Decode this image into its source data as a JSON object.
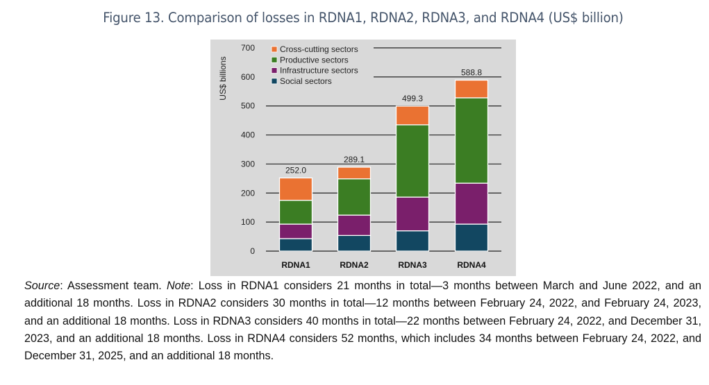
{
  "title": "Figure 13. Comparison of losses in RDNA1, RDNA2, RDNA3, and RDNA4 (US$ billion)",
  "chart_data": {
    "type": "bar",
    "stacked": true,
    "categories": [
      "RDNA1",
      "RDNA2",
      "RDNA3",
      "RDNA4"
    ],
    "series": [
      {
        "name": "Social sectors",
        "color": "#124761",
        "values": [
          43,
          54,
          70,
          93
        ]
      },
      {
        "name": "Infrastructure sectors",
        "color": "#7a1f6b",
        "values": [
          50,
          70,
          116,
          141
        ]
      },
      {
        "name": "Productive sectors",
        "color": "#3b7d23",
        "values": [
          82,
          125,
          249,
          294
        ]
      },
      {
        "name": "Cross-cutting sectors",
        "color": "#ea7232",
        "values": [
          77,
          40.1,
          64.3,
          60.8
        ]
      }
    ],
    "totals": [
      "252.0",
      "289.1",
      "499.3",
      "588.8"
    ],
    "ylabel": "US$ billions",
    "ylim": [
      0,
      700
    ],
    "yticks": [
      0,
      100,
      200,
      300,
      400,
      500,
      600,
      700
    ],
    "grid": true,
    "legend_position": "top-left",
    "legend_order": [
      "Cross-cutting sectors",
      "Productive sectors",
      "Infrastructure sectors",
      "Social sectors"
    ],
    "background": "#d9d9d9"
  },
  "caption": {
    "source_label": "Source",
    "source_text": ": Assessment team. ",
    "note_label": "Note",
    "note_text": ": Loss in RDNA1 considers 21 months in total—3 months between March and June 2022, and an additional 18 months. Loss in RDNA2 considers 30 months in total—12 months between February 24, 2022, and February 24, 2023, and an additional 18 months. Loss in RDNA3 considers 40 months in total—22 months between February 24, 2022, and December 31, 2023, and an additional 18 months. Loss in RDNA4 considers 52 months, which includes 34 months between February 24, 2022, and December 31, 2025, and an additional 18 months."
  }
}
